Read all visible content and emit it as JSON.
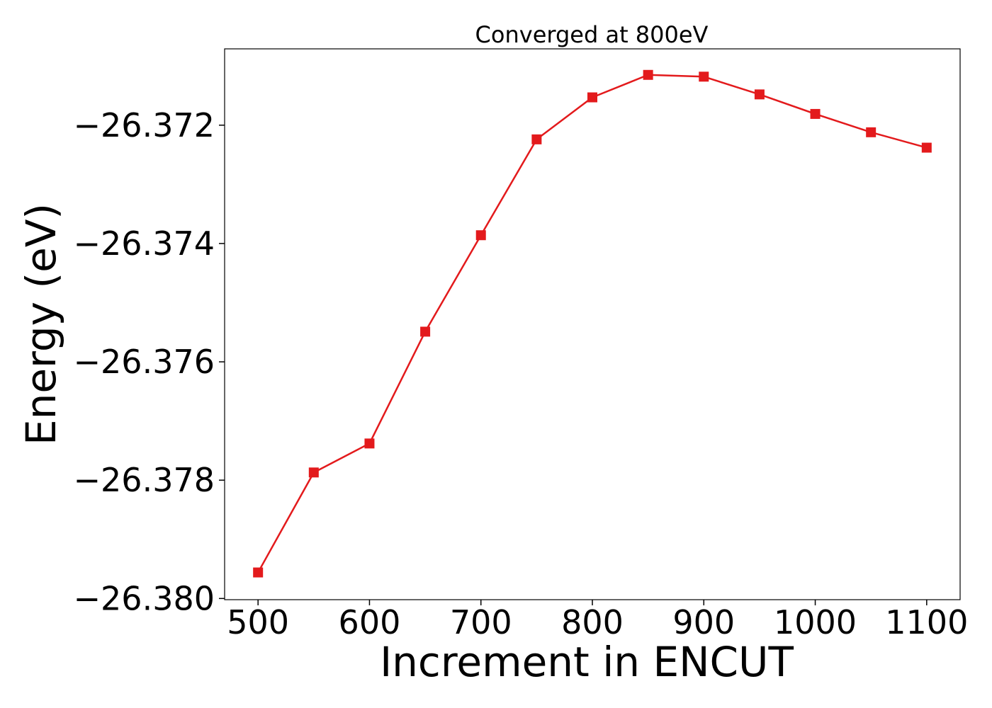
{
  "chart_data": {
    "type": "line",
    "title": "Converged at 800eV",
    "xlabel": "Increment in ENCUT",
    "ylabel": "Energy (eV)",
    "x": [
      500,
      550,
      600,
      650,
      700,
      750,
      800,
      850,
      900,
      950,
      1000,
      1050,
      1100
    ],
    "series": [
      {
        "values": [
          -26.37956,
          -26.37787,
          -26.37738,
          -26.37549,
          -26.37386,
          -26.37224,
          -26.37153,
          -26.37115,
          -26.37118,
          -26.37148,
          -26.37181,
          -26.37212,
          -26.37238
        ],
        "color": "#e31a1c",
        "marker": "square"
      }
    ],
    "xticks": [
      500,
      600,
      700,
      800,
      900,
      1000,
      1100
    ],
    "xtick_labels": [
      "500",
      "600",
      "700",
      "800",
      "900",
      "1000",
      "1100"
    ],
    "yticks": [
      -26.372,
      -26.374,
      -26.376,
      -26.378,
      -26.38
    ],
    "ytick_labels": [
      "−26.372",
      "−26.374",
      "−26.376",
      "−26.378",
      "−26.380"
    ],
    "xlim": [
      470,
      1130
    ],
    "ylim": [
      -26.38002,
      -26.37071
    ],
    "grid": false,
    "legend": "none"
  }
}
